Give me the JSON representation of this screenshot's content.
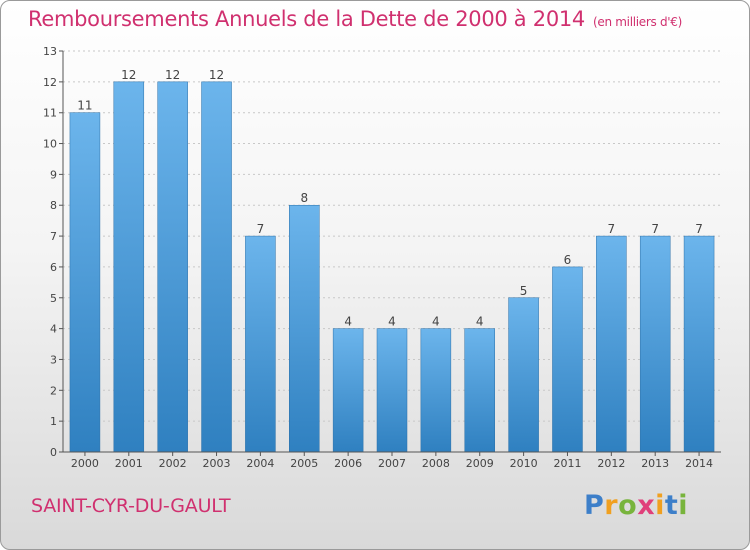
{
  "title": "Remboursements Annuels de la Dette de 2000 à 2014",
  "unit": "(en milliers d'€)",
  "town": "SAINT-CYR-DU-GAULT",
  "logo": {
    "text": "Proxiti",
    "letters": [
      "P",
      "r",
      "o",
      "x",
      "i",
      "t",
      "i"
    ],
    "colors": [
      "#3d7fc9",
      "#f0a020",
      "#78b43c",
      "#e0407a",
      "#f0a020",
      "#3d7fc9",
      "#78b43c"
    ]
  },
  "colors": {
    "title": "#d0306f",
    "bar_top": "#6cb5ec",
    "bar_bottom": "#2f80c0",
    "axis": "#555555"
  },
  "chart_data": {
    "type": "bar",
    "categories": [
      "2000",
      "2001",
      "2002",
      "2003",
      "2004",
      "2005",
      "2006",
      "2007",
      "2008",
      "2009",
      "2010",
      "2011",
      "2012",
      "2013",
      "2014"
    ],
    "values": [
      11,
      12,
      12,
      12,
      7,
      8,
      4,
      4,
      4,
      4,
      5,
      6,
      7,
      7,
      7
    ],
    "data_labels": [
      "11",
      "12",
      "12",
      "12",
      "7",
      "8",
      "4",
      "4",
      "4",
      "4",
      "5",
      "6",
      "7",
      "7",
      "7"
    ],
    "y_ticks": [
      0,
      1,
      2,
      3,
      4,
      5,
      6,
      7,
      8,
      9,
      10,
      11,
      12,
      13
    ],
    "ylim": [
      0,
      13
    ],
    "grid": true,
    "title": "Remboursements Annuels de la Dette de 2000 à 2014",
    "ylabel": "(en milliers d'€)"
  }
}
